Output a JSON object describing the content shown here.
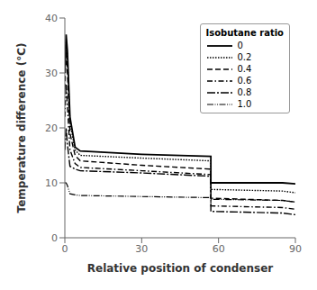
{
  "chart_data": {
    "type": "line",
    "xlabel": "Relative position of condenser",
    "ylabel": "Temperature difference (°C)",
    "xlim": [
      0,
      90
    ],
    "ylim": [
      0,
      40
    ],
    "xticks": [
      0,
      30,
      60,
      90
    ],
    "yticks": [
      0,
      10,
      20,
      30,
      40
    ],
    "legend": "upper right",
    "legend_title": "Isobutane ratio",
    "grid": false,
    "series": [
      {
        "name": "0",
        "color": "#000000",
        "line_style": "solid",
        "x": [
          0,
          0.5,
          1,
          2,
          4,
          6,
          30,
          57,
          57,
          85,
          90
        ],
        "values": [
          30.5,
          37,
          34,
          22,
          16.5,
          15.8,
          15.2,
          14.8,
          10.0,
          10.0,
          9.8
        ]
      },
      {
        "name": "0.2",
        "color": "#000000",
        "line_style": "dotted",
        "x": [
          0,
          0.5,
          1,
          2,
          4,
          6,
          30,
          57,
          57,
          85,
          90
        ],
        "values": [
          30.0,
          36,
          33,
          21,
          16.0,
          15.0,
          14.5,
          14.0,
          8.8,
          8.5,
          8.2
        ]
      },
      {
        "name": "0.4",
        "color": "#000000",
        "line_style": "dashed",
        "x": [
          0,
          0.5,
          1,
          2,
          4,
          6,
          30,
          57,
          57,
          85,
          90
        ],
        "values": [
          27.0,
          34,
          30,
          19,
          15.0,
          14.0,
          13.2,
          12.5,
          7.2,
          6.8,
          6.5
        ]
      },
      {
        "name": "0.6",
        "color": "#000000",
        "line_style": "dashdot",
        "x": [
          0,
          0.5,
          1,
          2,
          4,
          6,
          30,
          57,
          57,
          85,
          90
        ],
        "values": [
          22.0,
          28,
          24,
          16,
          13.5,
          12.8,
          12.2,
          11.5,
          5.8,
          5.5,
          5.2
        ]
      },
      {
        "name": "0.8",
        "color": "#000000",
        "line_style": "longdashdot",
        "x": [
          0,
          0.5,
          1,
          2,
          4,
          6,
          30,
          57,
          57,
          85,
          90
        ],
        "values": [
          16.0,
          20,
          17,
          13,
          12.5,
          12.2,
          11.8,
          11.2,
          4.8,
          4.5,
          4.2
        ]
      },
      {
        "name": "1.0",
        "color": "#000000",
        "line_style": "dashdotdot",
        "x": [
          0,
          0.5,
          1,
          2,
          4,
          6,
          30,
          57,
          57,
          85,
          90
        ],
        "values": [
          10.0,
          10,
          9.5,
          8.0,
          7.8,
          7.7,
          7.5,
          7.3,
          7.0,
          6.8,
          6.5
        ]
      }
    ]
  }
}
